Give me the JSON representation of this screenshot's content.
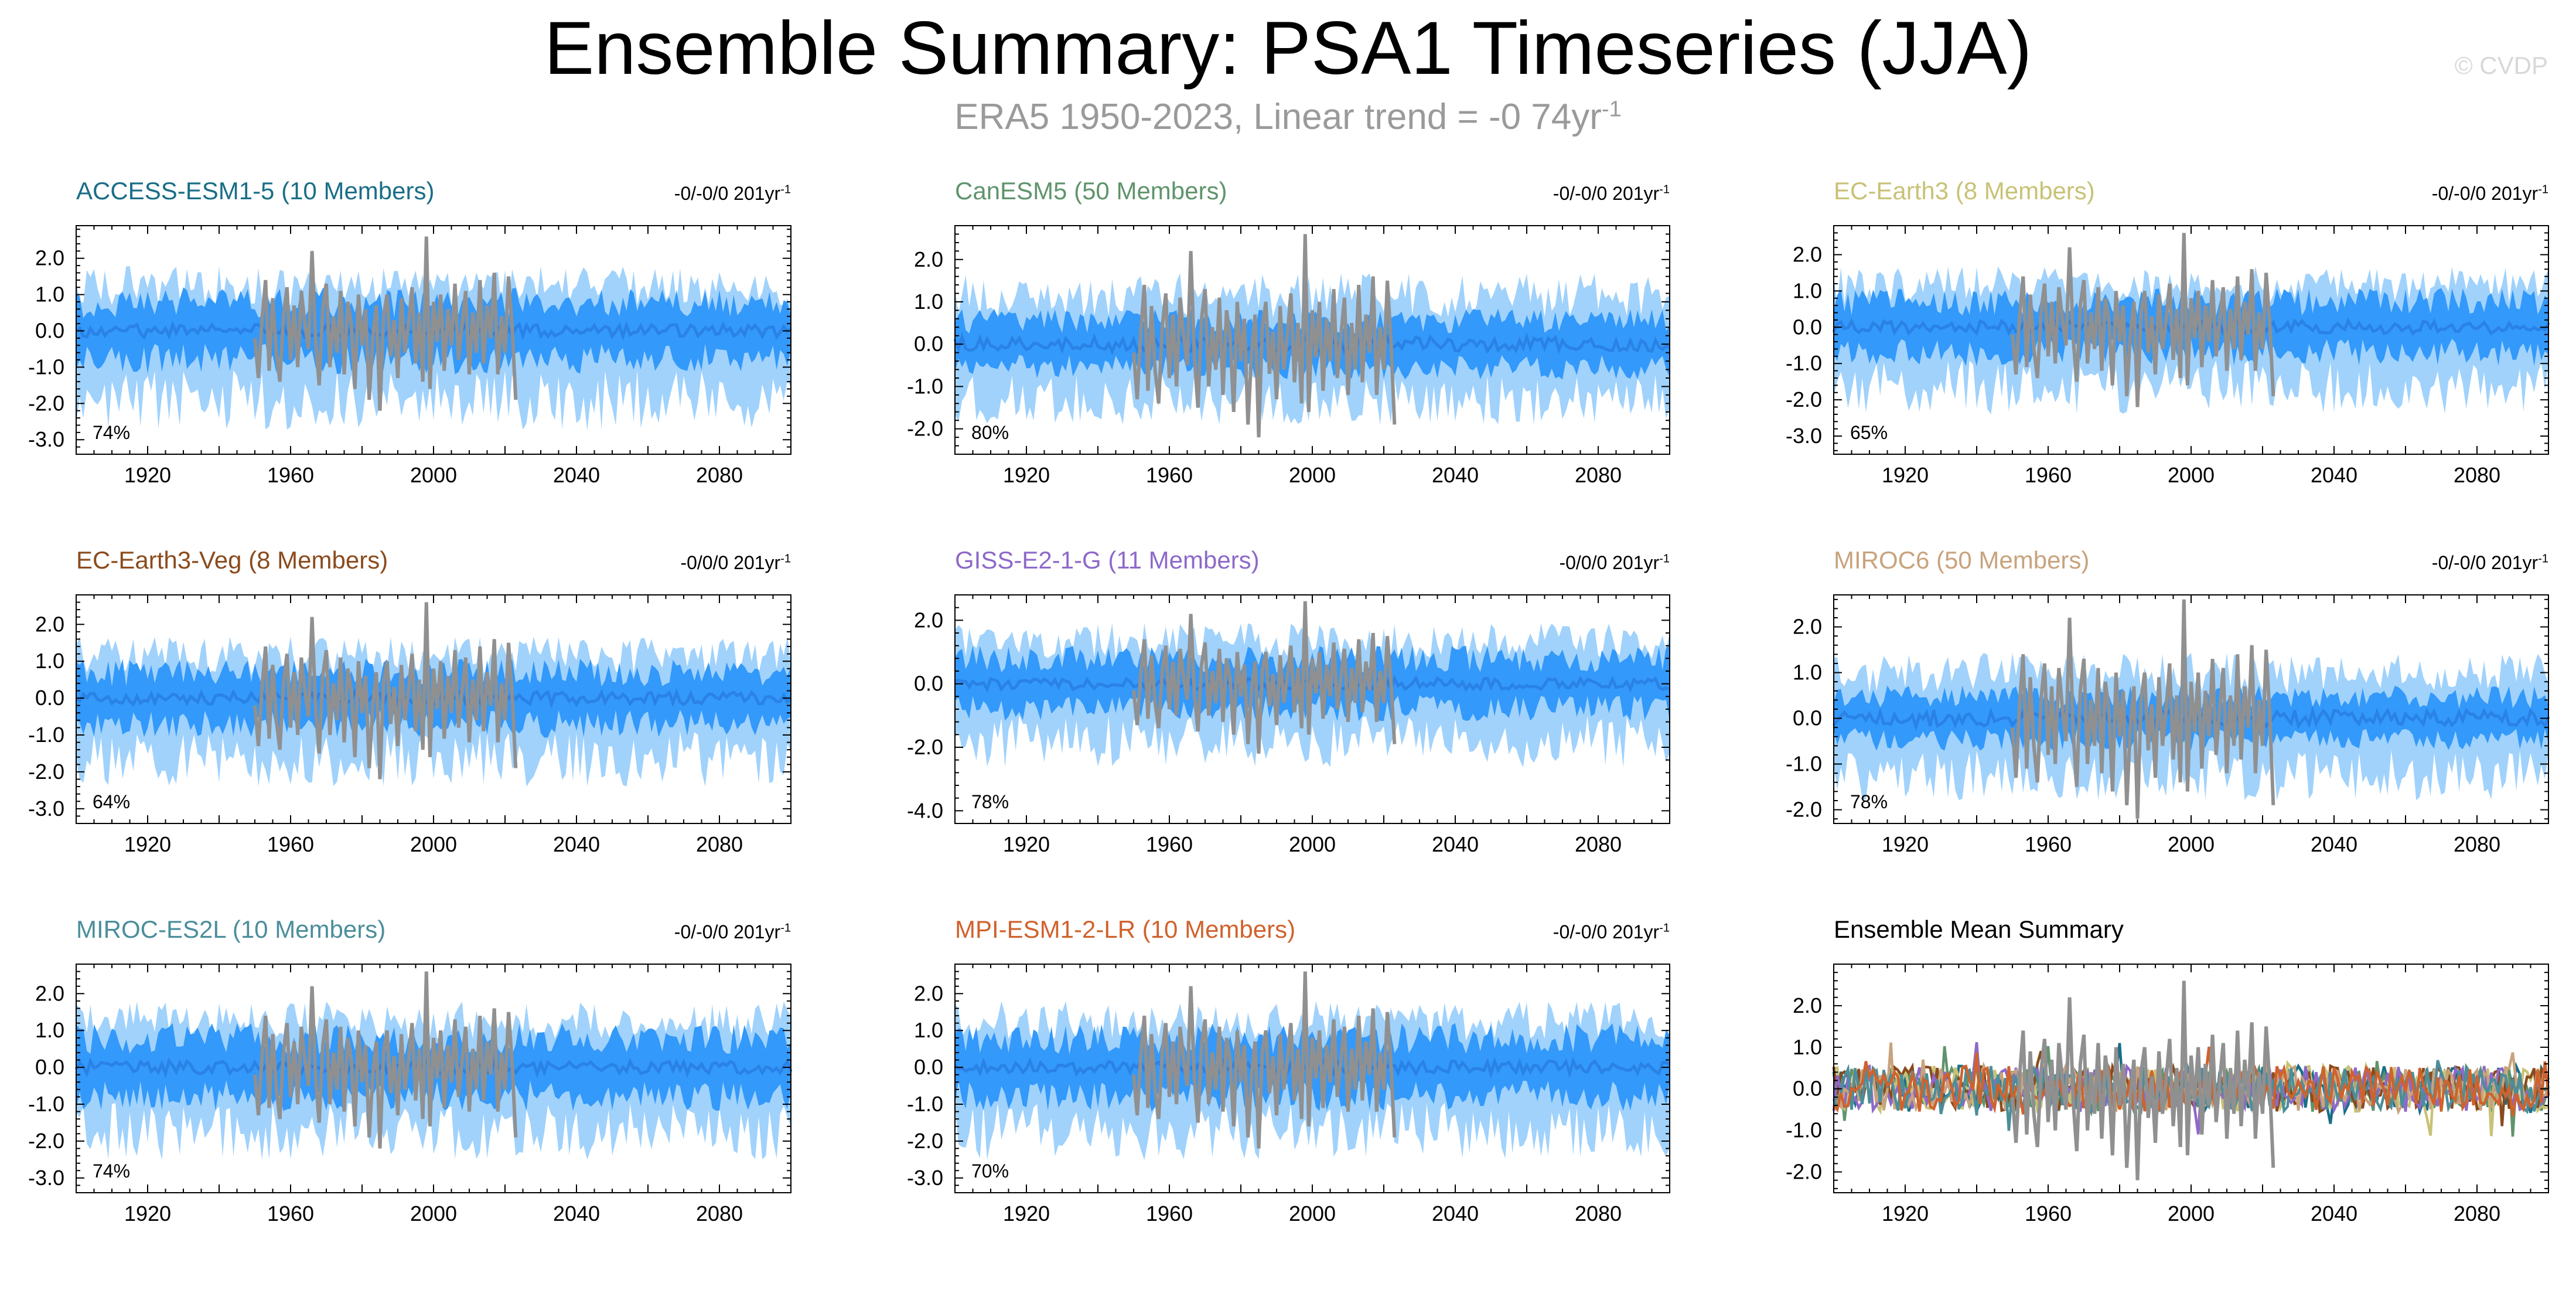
{
  "title": "Ensemble Summary: PSA1 Timeseries (JJA)",
  "subtitle": "ERA5 1950-2023, Linear trend = -0 74yr",
  "subtitle_unit_exponent": "-1",
  "copyright": "© CVDP",
  "colors": {
    "outer_band": "#a0d2fc",
    "inner_band": "#3399fa",
    "mean_line": "#2a82e6",
    "observed": "#909090"
  },
  "chart_data": [
    {
      "type": "area",
      "title": "ACCESS-ESM1-5 (10 Members)",
      "title_color": "#1a6e87",
      "trend": "-0/-0/0 201yr",
      "trend_exponent": "-1",
      "percent": "74%",
      "xlim": [
        1900,
        2100
      ],
      "ylim": [
        -3.4,
        2.9
      ],
      "x_ticks": [
        1920,
        1960,
        2000,
        2040,
        2080
      ],
      "x_tick_labels": [
        "1920",
        "1960",
        "2000",
        "2040",
        "2080"
      ],
      "y_ticks": [
        2.0,
        1.0,
        0.0,
        -1.0,
        -2.0,
        -3.0
      ],
      "y_tick_labels": [
        "2.0",
        "1.0",
        "0.0",
        "-1.0",
        "-2.0",
        "-3.0"
      ],
      "outer_range": [
        -2.3,
        1.5
      ],
      "inner_range": [
        -1.0,
        1.0
      ]
    },
    {
      "type": "area",
      "title": "CanESM5 (50 Members)",
      "title_color": "#5f946c",
      "trend": "-0/-0/0 201yr",
      "trend_exponent": "-1",
      "percent": "80%",
      "xlim": [
        1900,
        2100
      ],
      "ylim": [
        -2.6,
        2.8
      ],
      "x_ticks": [
        1920,
        1960,
        2000,
        2040,
        2080
      ],
      "x_tick_labels": [
        "1920",
        "1960",
        "2000",
        "2040",
        "2080"
      ],
      "y_ticks": [
        2.0,
        1.0,
        0.0,
        -1.0,
        -2.0
      ],
      "y_tick_labels": [
        "2.0",
        "1.0",
        "0.0",
        "-1.0",
        "-2.0"
      ],
      "outer_range": [
        -1.6,
        1.4
      ],
      "inner_range": [
        -0.7,
        0.7
      ]
    },
    {
      "type": "area",
      "title": "EC-Earth3 (8 Members)",
      "title_color": "#c8c276",
      "trend": "-0/-0/0 201yr",
      "trend_exponent": "-1",
      "percent": "65%",
      "xlim": [
        1900,
        2100
      ],
      "ylim": [
        -3.5,
        2.8
      ],
      "x_ticks": [
        1920,
        1960,
        2000,
        2040,
        2080
      ],
      "x_tick_labels": [
        "1920",
        "1960",
        "2000",
        "2040",
        "2080"
      ],
      "y_ticks": [
        2.0,
        1.0,
        0.0,
        -1.0,
        -2.0,
        -3.0
      ],
      "y_tick_labels": [
        "2.0",
        "1.0",
        "0.0",
        "-1.0",
        "-2.0",
        "-3.0"
      ],
      "outer_range": [
        -2.0,
        1.4
      ],
      "inner_range": [
        -0.9,
        0.9
      ]
    },
    {
      "type": "area",
      "title": "EC-Earth3-Veg (8 Members)",
      "title_color": "#8a4b1d",
      "trend": "-0/0/0 201yr",
      "trend_exponent": "-1",
      "percent": "64%",
      "xlim": [
        1900,
        2100
      ],
      "ylim": [
        -3.4,
        2.8
      ],
      "x_ticks": [
        1920,
        1960,
        2000,
        2040,
        2080
      ],
      "x_tick_labels": [
        "1920",
        "1960",
        "2000",
        "2040",
        "2080"
      ],
      "y_ticks": [
        2.0,
        1.0,
        0.0,
        -1.0,
        -2.0,
        -3.0
      ],
      "y_tick_labels": [
        "2.0",
        "1.0",
        "0.0",
        "-1.0",
        "-2.0",
        "-3.0"
      ],
      "outer_range": [
        -2.0,
        1.4
      ],
      "inner_range": [
        -0.9,
        0.9
      ]
    },
    {
      "type": "area",
      "title": "GISS-E2-1-G (11 Members)",
      "title_color": "#8d69c9",
      "trend": "-0/0/0 201yr",
      "trend_exponent": "-1",
      "percent": "78%",
      "xlim": [
        1900,
        2100
      ],
      "ylim": [
        -4.4,
        2.8
      ],
      "x_ticks": [
        1920,
        1960,
        2000,
        2040,
        2080
      ],
      "x_tick_labels": [
        "1920",
        "1960",
        "2000",
        "2040",
        "2080"
      ],
      "y_ticks": [
        2.0,
        0.0,
        -2.0,
        -4.0
      ],
      "y_tick_labels": [
        "2.0",
        "0.0",
        "-2.0",
        "-4.0"
      ],
      "outer_range": [
        -2.2,
        1.6
      ],
      "inner_range": [
        -1.0,
        1.0
      ]
    },
    {
      "type": "area",
      "title": "MIROC6 (50 Members)",
      "title_color": "#c8a37d",
      "trend": "-0/-0/0 201yr",
      "trend_exponent": "-1",
      "percent": "78%",
      "xlim": [
        1900,
        2100
      ],
      "ylim": [
        -2.3,
        2.7
      ],
      "x_ticks": [
        1920,
        1960,
        2000,
        2040,
        2080
      ],
      "x_tick_labels": [
        "1920",
        "1960",
        "2000",
        "2040",
        "2080"
      ],
      "y_ticks": [
        2.0,
        1.0,
        0.0,
        -1.0,
        -2.0
      ],
      "y_tick_labels": [
        "2.0",
        "1.0",
        "0.0",
        "-1.0",
        "-2.0"
      ],
      "outer_range": [
        -1.5,
        1.2
      ],
      "inner_range": [
        -0.6,
        0.6
      ]
    },
    {
      "type": "area",
      "title": "MIROC-ES2L (10 Members)",
      "title_color": "#4b8e9b",
      "trend": "-0/-0/0 201yr",
      "trend_exponent": "-1",
      "percent": "74%",
      "xlim": [
        1900,
        2100
      ],
      "ylim": [
        -3.4,
        2.8
      ],
      "x_ticks": [
        1920,
        1960,
        2000,
        2040,
        2080
      ],
      "x_tick_labels": [
        "1920",
        "1960",
        "2000",
        "2040",
        "2080"
      ],
      "y_ticks": [
        2.0,
        1.0,
        0.0,
        -1.0,
        -2.0,
        -3.0
      ],
      "y_tick_labels": [
        "2.0",
        "1.0",
        "0.0",
        "-1.0",
        "-2.0",
        "-3.0"
      ],
      "outer_range": [
        -2.1,
        1.5
      ],
      "inner_range": [
        -1.0,
        1.0
      ]
    },
    {
      "type": "area",
      "title": "MPI-ESM1-2-LR (10 Members)",
      "title_color": "#d0622c",
      "trend": "-0/-0/0 201yr",
      "trend_exponent": "-1",
      "percent": "70%",
      "xlim": [
        1900,
        2100
      ],
      "ylim": [
        -3.4,
        2.8
      ],
      "x_ticks": [
        1920,
        1960,
        2000,
        2040,
        2080
      ],
      "x_tick_labels": [
        "1920",
        "1960",
        "2000",
        "2040",
        "2080"
      ],
      "y_ticks": [
        2.0,
        1.0,
        0.0,
        -1.0,
        -2.0,
        -3.0
      ],
      "y_tick_labels": [
        "2.0",
        "1.0",
        "0.0",
        "-1.0",
        "-2.0",
        "-3.0"
      ],
      "outer_range": [
        -2.1,
        1.5
      ],
      "inner_range": [
        -1.0,
        1.0
      ]
    },
    {
      "type": "line",
      "title": "Ensemble Mean Summary",
      "title_color": "#000000",
      "xlim": [
        1900,
        2100
      ],
      "ylim": [
        -2.5,
        3.0
      ],
      "x_ticks": [
        1920,
        1960,
        2000,
        2040,
        2080
      ],
      "x_tick_labels": [
        "1920",
        "1960",
        "2000",
        "2040",
        "2080"
      ],
      "y_ticks": [
        2.0,
        1.0,
        0.0,
        -1.0,
        -2.0
      ],
      "y_tick_labels": [
        "2.0",
        "1.0",
        "0.0",
        "-1.0",
        "-2.0"
      ],
      "series_colors": [
        "#1a6e87",
        "#5f946c",
        "#c8c276",
        "#8a4b1d",
        "#8d69c9",
        "#c8a37d",
        "#4b8e9b",
        "#d0622c"
      ]
    }
  ],
  "observed": {
    "years": [
      1950,
      1951,
      1952,
      1953,
      1954,
      1955,
      1956,
      1957,
      1958,
      1959,
      1960,
      1961,
      1962,
      1963,
      1964,
      1965,
      1966,
      1967,
      1968,
      1969,
      1970,
      1971,
      1972,
      1973,
      1974,
      1975,
      1976,
      1977,
      1978,
      1979,
      1980,
      1981,
      1982,
      1983,
      1984,
      1985,
      1986,
      1987,
      1988,
      1989,
      1990,
      1991,
      1992,
      1993,
      1994,
      1995,
      1996,
      1997,
      1998,
      1999,
      2000,
      2001,
      2002,
      2003,
      2004,
      2005,
      2006,
      2007,
      2008,
      2009,
      2010,
      2011,
      2012,
      2013,
      2014,
      2015,
      2016,
      2017,
      2018,
      2019,
      2020,
      2021,
      2022,
      2023
    ],
    "values": [
      -0.2,
      -1.3,
      0.3,
      1.4,
      -1.1,
      0.9,
      -0.6,
      -1.4,
      0.4,
      1.2,
      -0.8,
      0.7,
      -1.0,
      1.1,
      0.2,
      -0.5,
      2.2,
      -0.3,
      -1.5,
      0.6,
      1.3,
      -1.0,
      0.4,
      -0.6,
      1.1,
      -1.2,
      0.8,
      0.2,
      -1.6,
      1.0,
      -0.4,
      0.6,
      -1.9,
      -0.2,
      0.7,
      -2.2,
      0.4,
      1.0,
      -0.7,
      0.3,
      -1.3,
      0.9,
      -0.6,
      0.2,
      1.2,
      -0.9,
      0.5,
      -1.4,
      2.6,
      -1.6,
      0.8,
      -0.3,
      1.0,
      -1.1,
      0.6,
      -0.4,
      1.3,
      -0.8,
      0.2,
      1.1,
      -1.2,
      0.5,
      -0.6,
      1.4,
      -0.9,
      0.7,
      -0.2,
      1.6,
      -1.2,
      0.4,
      -0.6,
      1.5,
      0.1,
      -1.9
    ]
  }
}
